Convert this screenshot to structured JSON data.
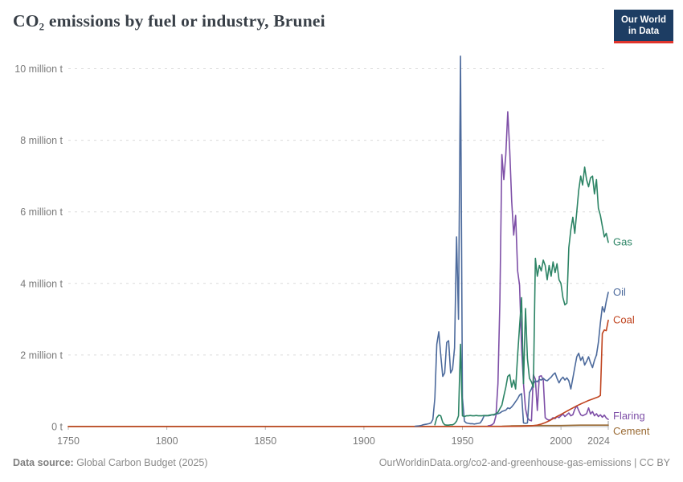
{
  "header": {
    "title": "CO₂ emissions by fuel or industry, Brunei",
    "logo_line1": "Our World",
    "logo_line2": "in Data"
  },
  "footer": {
    "source_label": "Data source:",
    "source_value": " Global Carbon Budget (2025)",
    "credit": "OurWorldinData.org/co2-and-greenhouse-gas-emissions | CC BY"
  },
  "colors": {
    "logo_navy": "#1D3D63",
    "logo_red": "#E0342C",
    "gridline": "#dcdcdc",
    "axis": "#b3b3b3",
    "tick_text": "#7a7a7a"
  },
  "chart_data": {
    "type": "line",
    "title": "CO₂ emissions by fuel or industry, Brunei",
    "unit": "million tonnes of CO₂",
    "xlim": [
      1750,
      2024
    ],
    "ylim": [
      0,
      10.4
    ],
    "grid": "dashed-horizontal",
    "legend_position": "end-of-line",
    "x_ticks": [
      {
        "year": 1750,
        "label": "1750",
        "dx": 0
      },
      {
        "year": 1800,
        "label": "1800",
        "dx": 0
      },
      {
        "year": 1850,
        "label": "1850",
        "dx": 0
      },
      {
        "year": 1900,
        "label": "1900",
        "dx": 0
      },
      {
        "year": 1950,
        "label": "1950",
        "dx": 0
      },
      {
        "year": 2000,
        "label": "2000",
        "dx": 0
      },
      {
        "year": 2024,
        "label": "2024",
        "dx": -12
      }
    ],
    "y_ticks": [
      {
        "value": 0,
        "label": "0 t"
      },
      {
        "value": 2,
        "label": "2 million t"
      },
      {
        "value": 4,
        "label": "4 million t"
      },
      {
        "value": 6,
        "label": "6 million t"
      },
      {
        "value": 8,
        "label": "8 million t"
      },
      {
        "value": 10,
        "label": "10 million t"
      }
    ],
    "series": [
      {
        "name": "Gas",
        "color": "#2C8465",
        "label_dy": 0,
        "points": [
          [
            1936,
            0.05
          ],
          [
            1937,
            0.25
          ],
          [
            1938,
            0.32
          ],
          [
            1939,
            0.3
          ],
          [
            1940,
            0.12
          ],
          [
            1941,
            0.05
          ],
          [
            1942,
            0.04
          ],
          [
            1943,
            0.04
          ],
          [
            1944,
            0.05
          ],
          [
            1945,
            0.05
          ],
          [
            1946,
            0.08
          ],
          [
            1947,
            0.15
          ],
          [
            1948,
            0.3
          ],
          [
            1949,
            2.3
          ],
          [
            1950,
            0.3
          ],
          [
            1951,
            0.28
          ],
          [
            1952,
            0.3
          ],
          [
            1953,
            0.3
          ],
          [
            1954,
            0.31
          ],
          [
            1955,
            0.3
          ],
          [
            1956,
            0.3
          ],
          [
            1957,
            0.31
          ],
          [
            1958,
            0.3
          ],
          [
            1959,
            0.3
          ],
          [
            1960,
            0.3
          ],
          [
            1961,
            0.31
          ],
          [
            1962,
            0.3
          ],
          [
            1963,
            0.31
          ],
          [
            1964,
            0.32
          ],
          [
            1965,
            0.33
          ],
          [
            1966,
            0.34
          ],
          [
            1967,
            0.36
          ],
          [
            1968,
            0.4
          ],
          [
            1969,
            0.5
          ],
          [
            1970,
            0.6
          ],
          [
            1971,
            0.85
          ],
          [
            1972,
            1.1
          ],
          [
            1973,
            1.4
          ],
          [
            1974,
            1.45
          ],
          [
            1975,
            1.1
          ],
          [
            1976,
            1.3
          ],
          [
            1977,
            1.05
          ],
          [
            1978,
            2.0
          ],
          [
            1979,
            2.8
          ],
          [
            1980,
            3.6
          ],
          [
            1981,
            1.2
          ],
          [
            1982,
            3.3
          ],
          [
            1983,
            1.9
          ],
          [
            1984,
            1.35
          ],
          [
            1985,
            1.25
          ],
          [
            1986,
            1.1
          ],
          [
            1987,
            4.7
          ],
          [
            1988,
            4.2
          ],
          [
            1989,
            4.5
          ],
          [
            1990,
            4.35
          ],
          [
            1991,
            4.65
          ],
          [
            1992,
            4.5
          ],
          [
            1993,
            4.1
          ],
          [
            1994,
            4.5
          ],
          [
            1995,
            4.2
          ],
          [
            1996,
            4.6
          ],
          [
            1997,
            4.3
          ],
          [
            1998,
            4.55
          ],
          [
            1999,
            4.1
          ],
          [
            2000,
            4.0
          ],
          [
            2001,
            3.6
          ],
          [
            2002,
            3.4
          ],
          [
            2003,
            3.45
          ],
          [
            2004,
            5.0
          ],
          [
            2005,
            5.5
          ],
          [
            2006,
            5.85
          ],
          [
            2007,
            5.4
          ],
          [
            2008,
            6.0
          ],
          [
            2009,
            6.6
          ],
          [
            2010,
            7.0
          ],
          [
            2011,
            6.75
          ],
          [
            2012,
            7.25
          ],
          [
            2013,
            6.9
          ],
          [
            2014,
            6.7
          ],
          [
            2015,
            6.95
          ],
          [
            2016,
            7.0
          ],
          [
            2017,
            6.5
          ],
          [
            2018,
            6.9
          ],
          [
            2019,
            6.1
          ],
          [
            2020,
            5.9
          ],
          [
            2021,
            5.6
          ],
          [
            2022,
            5.3
          ],
          [
            2023,
            5.4
          ],
          [
            2024,
            5.15
          ]
        ]
      },
      {
        "name": "Oil",
        "color": "#4C6A9C",
        "label_dy": 0,
        "points": [
          [
            1926,
            0.01
          ],
          [
            1928,
            0.02
          ],
          [
            1929,
            0.03
          ],
          [
            1930,
            0.05
          ],
          [
            1931,
            0.06
          ],
          [
            1932,
            0.07
          ],
          [
            1933,
            0.08
          ],
          [
            1934,
            0.1
          ],
          [
            1935,
            0.2
          ],
          [
            1936,
            0.8
          ],
          [
            1937,
            2.3
          ],
          [
            1938,
            2.65
          ],
          [
            1939,
            2.0
          ],
          [
            1940,
            1.4
          ],
          [
            1941,
            1.5
          ],
          [
            1942,
            2.35
          ],
          [
            1943,
            2.4
          ],
          [
            1944,
            1.5
          ],
          [
            1945,
            1.6
          ],
          [
            1946,
            2.2
          ],
          [
            1947,
            5.3
          ],
          [
            1948,
            3.0
          ],
          [
            1949,
            10.35
          ],
          [
            1950,
            0.8
          ],
          [
            1951,
            0.15
          ],
          [
            1952,
            0.1
          ],
          [
            1953,
            0.09
          ],
          [
            1954,
            0.08
          ],
          [
            1955,
            0.08
          ],
          [
            1956,
            0.07
          ],
          [
            1957,
            0.08
          ],
          [
            1958,
            0.09
          ],
          [
            1959,
            0.1
          ],
          [
            1960,
            0.18
          ],
          [
            1961,
            0.3
          ],
          [
            1962,
            0.31
          ],
          [
            1963,
            0.3
          ],
          [
            1964,
            0.31
          ],
          [
            1965,
            0.33
          ],
          [
            1966,
            0.32
          ],
          [
            1967,
            0.35
          ],
          [
            1968,
            0.36
          ],
          [
            1969,
            0.38
          ],
          [
            1970,
            0.42
          ],
          [
            1971,
            0.44
          ],
          [
            1972,
            0.46
          ],
          [
            1973,
            0.52
          ],
          [
            1974,
            0.5
          ],
          [
            1975,
            0.55
          ],
          [
            1976,
            0.62
          ],
          [
            1977,
            0.7
          ],
          [
            1978,
            0.78
          ],
          [
            1979,
            0.88
          ],
          [
            1980,
            0.92
          ],
          [
            1981,
            0.1
          ],
          [
            1982,
            0.09
          ],
          [
            1983,
            0.1
          ],
          [
            1984,
            0.95
          ],
          [
            1985,
            1.05
          ],
          [
            1986,
            1.2
          ],
          [
            1987,
            1.28
          ],
          [
            1988,
            1.25
          ],
          [
            1989,
            1.32
          ],
          [
            1990,
            1.3
          ],
          [
            1991,
            1.35
          ],
          [
            1992,
            1.3
          ],
          [
            1993,
            1.28
          ],
          [
            1994,
            1.33
          ],
          [
            1995,
            1.38
          ],
          [
            1996,
            1.45
          ],
          [
            1997,
            1.5
          ],
          [
            1998,
            1.35
          ],
          [
            1999,
            1.22
          ],
          [
            2000,
            1.32
          ],
          [
            2001,
            1.38
          ],
          [
            2002,
            1.3
          ],
          [
            2003,
            1.36
          ],
          [
            2004,
            1.28
          ],
          [
            2005,
            1.05
          ],
          [
            2006,
            1.35
          ],
          [
            2007,
            1.65
          ],
          [
            2008,
            1.95
          ],
          [
            2009,
            2.05
          ],
          [
            2010,
            1.85
          ],
          [
            2011,
            1.95
          ],
          [
            2012,
            1.72
          ],
          [
            2013,
            1.82
          ],
          [
            2014,
            1.95
          ],
          [
            2015,
            1.78
          ],
          [
            2016,
            1.65
          ],
          [
            2017,
            1.85
          ],
          [
            2018,
            2.0
          ],
          [
            2019,
            2.35
          ],
          [
            2020,
            2.9
          ],
          [
            2021,
            3.35
          ],
          [
            2022,
            3.2
          ],
          [
            2023,
            3.5
          ],
          [
            2024,
            3.75
          ]
        ]
      },
      {
        "name": "Coal",
        "color": "#C0441F",
        "label_dy": 0,
        "points": [
          [
            1750,
            0
          ],
          [
            1850,
            0
          ],
          [
            1900,
            0
          ],
          [
            1930,
            0
          ],
          [
            1950,
            0.005
          ],
          [
            1960,
            0.005
          ],
          [
            1970,
            0.005
          ],
          [
            1980,
            0.01
          ],
          [
            1985,
            0.02
          ],
          [
            1988,
            0.04
          ],
          [
            1990,
            0.07
          ],
          [
            1992,
            0.11
          ],
          [
            1994,
            0.16
          ],
          [
            1996,
            0.22
          ],
          [
            1998,
            0.28
          ],
          [
            2000,
            0.34
          ],
          [
            2002,
            0.4
          ],
          [
            2004,
            0.46
          ],
          [
            2006,
            0.52
          ],
          [
            2008,
            0.58
          ],
          [
            2010,
            0.63
          ],
          [
            2012,
            0.68
          ],
          [
            2014,
            0.73
          ],
          [
            2016,
            0.77
          ],
          [
            2018,
            0.81
          ],
          [
            2019,
            0.83
          ],
          [
            2020,
            0.87
          ],
          [
            2021,
            2.6
          ],
          [
            2022,
            2.7
          ],
          [
            2023,
            2.68
          ],
          [
            2024,
            2.97
          ]
        ]
      },
      {
        "name": "Flaring",
        "color": "#7E4FA7",
        "label_dy": -4,
        "points": [
          [
            1963,
            0.02
          ],
          [
            1964,
            0.03
          ],
          [
            1965,
            0.05
          ],
          [
            1966,
            0.1
          ],
          [
            1967,
            0.3
          ],
          [
            1968,
            1.2
          ],
          [
            1969,
            3.5
          ],
          [
            1970,
            7.6
          ],
          [
            1971,
            6.9
          ],
          [
            1972,
            7.6
          ],
          [
            1973,
            8.8
          ],
          [
            1974,
            7.7
          ],
          [
            1975,
            6.3
          ],
          [
            1976,
            5.35
          ],
          [
            1977,
            5.9
          ],
          [
            1978,
            4.35
          ],
          [
            1979,
            3.95
          ],
          [
            1980,
            2.2
          ],
          [
            1981,
            1.2
          ],
          [
            1982,
            0.5
          ],
          [
            1983,
            0.25
          ],
          [
            1984,
            0.18
          ],
          [
            1985,
            0.16
          ],
          [
            1986,
            1.45
          ],
          [
            1987,
            1.32
          ],
          [
            1988,
            0.45
          ],
          [
            1989,
            1.4
          ],
          [
            1990,
            1.42
          ],
          [
            1991,
            1.3
          ],
          [
            1992,
            0.25
          ],
          [
            1993,
            0.2
          ],
          [
            1994,
            0.18
          ],
          [
            1995,
            0.2
          ],
          [
            1996,
            0.25
          ],
          [
            1997,
            0.22
          ],
          [
            1998,
            0.28
          ],
          [
            1999,
            0.25
          ],
          [
            2000,
            0.3
          ],
          [
            2001,
            0.35
          ],
          [
            2002,
            0.28
          ],
          [
            2003,
            0.33
          ],
          [
            2004,
            0.38
          ],
          [
            2005,
            0.3
          ],
          [
            2006,
            0.33
          ],
          [
            2007,
            0.48
          ],
          [
            2008,
            0.58
          ],
          [
            2009,
            0.45
          ],
          [
            2010,
            0.33
          ],
          [
            2011,
            0.3
          ],
          [
            2012,
            0.33
          ],
          [
            2013,
            0.36
          ],
          [
            2014,
            0.52
          ],
          [
            2015,
            0.35
          ],
          [
            2016,
            0.42
          ],
          [
            2017,
            0.3
          ],
          [
            2018,
            0.36
          ],
          [
            2019,
            0.28
          ],
          [
            2020,
            0.33
          ],
          [
            2021,
            0.26
          ],
          [
            2022,
            0.32
          ],
          [
            2023,
            0.24
          ],
          [
            2024,
            0.2
          ]
        ]
      },
      {
        "name": "Cement",
        "color": "#9A6A33",
        "label_dy": 8,
        "points": [
          [
            1750,
            0.005
          ],
          [
            1850,
            0.005
          ],
          [
            1950,
            0.005
          ],
          [
            1970,
            0.01
          ],
          [
            1975,
            0.02
          ],
          [
            1980,
            0.025
          ],
          [
            1990,
            0.03
          ],
          [
            2000,
            0.03
          ],
          [
            2005,
            0.035
          ],
          [
            2010,
            0.04
          ],
          [
            2015,
            0.04
          ],
          [
            2020,
            0.04
          ],
          [
            2024,
            0.04
          ]
        ]
      }
    ]
  }
}
